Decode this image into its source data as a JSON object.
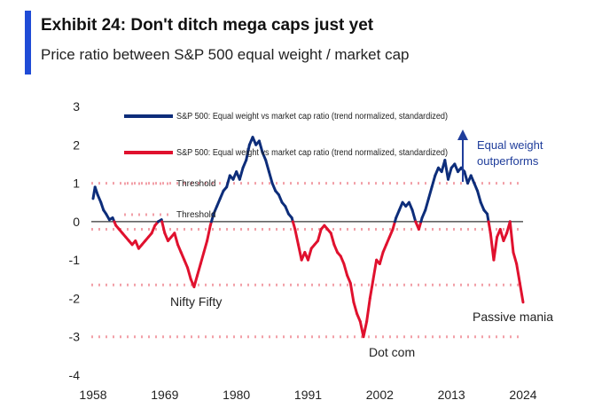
{
  "header": {
    "title": "Exhibit 24: Don't ditch mega caps just yet",
    "subtitle": "Price ratio between S&P 500 equal weight / market cap"
  },
  "colors": {
    "accent": "#1f4bd6",
    "blue_series": "#0d2d7a",
    "red_series": "#e0112e",
    "threshold": "#f2a0a8",
    "zero_line": "#333333",
    "annotation_blue": "#1f3d9b"
  },
  "chart_data": {
    "type": "line",
    "title": "Exhibit 24: Don't ditch mega caps just yet",
    "subtitle": "Price ratio between S&P 500 equal weight / market cap",
    "xlabel": "",
    "ylabel": "",
    "xlim": [
      1958,
      2024
    ],
    "ylim": [
      -4,
      3
    ],
    "x_ticks": [
      "1958",
      "1969",
      "1980",
      "1991",
      "2002",
      "2013",
      "2024"
    ],
    "y_ticks": [
      "3",
      "2",
      "1",
      "0",
      "-1",
      "-2",
      "-3",
      "-4"
    ],
    "grid": false,
    "legend_position": "top-left",
    "legend": [
      "S&P 500: Equal weight vs market cap ratio (trend normalized, standardized)",
      "S&P 500: Equal weight vs market cap ratio (trend normalized, standardized)",
      "Threshold",
      "Threshold"
    ],
    "series": [
      {
        "name": "S&P 500: Equal weight vs market cap ratio (trend normalized, standardized)",
        "points": [
          [
            1958.0,
            0.6
          ],
          [
            1958.3,
            0.9
          ],
          [
            1958.7,
            0.7
          ],
          [
            1959.2,
            0.5
          ],
          [
            1959.6,
            0.3
          ],
          [
            1960.0,
            0.2
          ],
          [
            1960.5,
            0.05
          ],
          [
            1961.0,
            0.1
          ],
          [
            1961.5,
            -0.1
          ],
          [
            1962.0,
            -0.2
          ],
          [
            1962.5,
            -0.3
          ],
          [
            1963.0,
            -0.4
          ],
          [
            1963.5,
            -0.5
          ],
          [
            1964.0,
            -0.6
          ],
          [
            1964.5,
            -0.5
          ],
          [
            1965.0,
            -0.7
          ],
          [
            1965.5,
            -0.6
          ],
          [
            1966.0,
            -0.5
          ],
          [
            1966.5,
            -0.4
          ],
          [
            1967.0,
            -0.3
          ],
          [
            1967.5,
            -0.1
          ],
          [
            1968.0,
            0.0
          ],
          [
            1968.5,
            0.05
          ],
          [
            1969.0,
            -0.3
          ],
          [
            1969.5,
            -0.5
          ],
          [
            1970.0,
            -0.4
          ],
          [
            1970.5,
            -0.3
          ],
          [
            1971.0,
            -0.6
          ],
          [
            1971.5,
            -0.8
          ],
          [
            1972.0,
            -1.0
          ],
          [
            1972.5,
            -1.2
          ],
          [
            1973.0,
            -1.5
          ],
          [
            1973.5,
            -1.7
          ],
          [
            1974.0,
            -1.4
          ],
          [
            1974.5,
            -1.1
          ],
          [
            1975.0,
            -0.8
          ],
          [
            1975.5,
            -0.5
          ],
          [
            1976.0,
            -0.1
          ],
          [
            1976.5,
            0.2
          ],
          [
            1977.0,
            0.4
          ],
          [
            1977.5,
            0.6
          ],
          [
            1978.0,
            0.8
          ],
          [
            1978.5,
            0.9
          ],
          [
            1979.0,
            1.2
          ],
          [
            1979.5,
            1.1
          ],
          [
            1980.0,
            1.3
          ],
          [
            1980.5,
            1.1
          ],
          [
            1981.0,
            1.4
          ],
          [
            1981.5,
            1.6
          ],
          [
            1982.0,
            2.0
          ],
          [
            1982.5,
            2.2
          ],
          [
            1983.0,
            2.0
          ],
          [
            1983.5,
            2.1
          ],
          [
            1984.0,
            1.8
          ],
          [
            1984.5,
            1.6
          ],
          [
            1985.0,
            1.3
          ],
          [
            1985.5,
            1.0
          ],
          [
            1986.0,
            0.8
          ],
          [
            1986.5,
            0.7
          ],
          [
            1987.0,
            0.5
          ],
          [
            1987.5,
            0.4
          ],
          [
            1988.0,
            0.2
          ],
          [
            1988.5,
            0.1
          ],
          [
            1989.0,
            -0.2
          ],
          [
            1989.5,
            -0.6
          ],
          [
            1990.0,
            -1.0
          ],
          [
            1990.5,
            -0.8
          ],
          [
            1991.0,
            -1.0
          ],
          [
            1991.5,
            -0.7
          ],
          [
            1992.0,
            -0.6
          ],
          [
            1992.5,
            -0.5
          ],
          [
            1993.0,
            -0.2
          ],
          [
            1993.5,
            -0.1
          ],
          [
            1994.0,
            -0.2
          ],
          [
            1994.5,
            -0.3
          ],
          [
            1995.0,
            -0.6
          ],
          [
            1995.5,
            -0.8
          ],
          [
            1996.0,
            -0.9
          ],
          [
            1996.5,
            -1.1
          ],
          [
            1997.0,
            -1.4
          ],
          [
            1997.5,
            -1.6
          ],
          [
            1998.0,
            -2.1
          ],
          [
            1998.5,
            -2.4
          ],
          [
            1999.0,
            -2.6
          ],
          [
            1999.5,
            -3.0
          ],
          [
            2000.0,
            -2.6
          ],
          [
            2000.5,
            -2.0
          ],
          [
            2001.0,
            -1.5
          ],
          [
            2001.5,
            -1.0
          ],
          [
            2002.0,
            -1.1
          ],
          [
            2002.5,
            -0.8
          ],
          [
            2003.0,
            -0.6
          ],
          [
            2003.5,
            -0.4
          ],
          [
            2004.0,
            -0.2
          ],
          [
            2004.5,
            0.1
          ],
          [
            2005.0,
            0.3
          ],
          [
            2005.5,
            0.5
          ],
          [
            2006.0,
            0.4
          ],
          [
            2006.5,
            0.5
          ],
          [
            2007.0,
            0.3
          ],
          [
            2007.5,
            0.0
          ],
          [
            2008.0,
            -0.2
          ],
          [
            2008.5,
            0.1
          ],
          [
            2009.0,
            0.3
          ],
          [
            2009.5,
            0.6
          ],
          [
            2010.0,
            0.9
          ],
          [
            2010.5,
            1.2
          ],
          [
            2011.0,
            1.4
          ],
          [
            2011.5,
            1.3
          ],
          [
            2012.0,
            1.6
          ],
          [
            2012.5,
            1.1
          ],
          [
            2013.0,
            1.4
          ],
          [
            2013.5,
            1.5
          ],
          [
            2014.0,
            1.3
          ],
          [
            2014.5,
            1.4
          ],
          [
            2015.0,
            1.3
          ],
          [
            2015.5,
            1.0
          ],
          [
            2016.0,
            1.2
          ],
          [
            2016.5,
            1.0
          ],
          [
            2017.0,
            0.8
          ],
          [
            2017.5,
            0.5
          ],
          [
            2018.0,
            0.3
          ],
          [
            2018.5,
            0.2
          ],
          [
            2019.0,
            -0.3
          ],
          [
            2019.5,
            -1.0
          ],
          [
            2020.0,
            -0.4
          ],
          [
            2020.5,
            -0.2
          ],
          [
            2021.0,
            -0.5
          ],
          [
            2021.5,
            -0.3
          ],
          [
            2022.0,
            0.0
          ],
          [
            2022.5,
            -0.8
          ],
          [
            2023.0,
            -1.1
          ],
          [
            2023.5,
            -1.6
          ],
          [
            2024.0,
            -2.1
          ]
        ]
      }
    ],
    "thresholds": [
      1.0,
      -0.2,
      -1.65,
      -3.0
    ],
    "annotations": {
      "equal_weight": "Equal weight",
      "outperforms": "outperforms",
      "nifty_fifty": "Nifty Fifty",
      "dot_com": "Dot com",
      "passive_mania": "Passive mania"
    }
  }
}
